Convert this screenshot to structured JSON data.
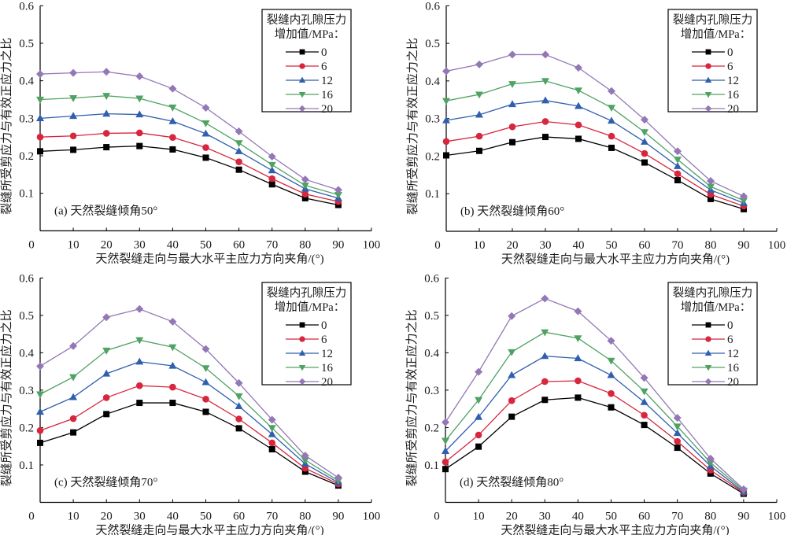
{
  "figure": {
    "legend_title_line1": "裂缝内孔隙压力",
    "legend_title_line2": "增加值/MPa："
  },
  "chart_data": [
    {
      "type": "line",
      "panel": "a",
      "title": "(a) 天然裂缝倾角50°",
      "xlabel": "天然裂缝走向与最大水平主应力方向夹角/(°)",
      "ylabel": "裂缝所受剪应力与有效正应力之比",
      "xlim": [
        0,
        100
      ],
      "ylim": [
        0,
        0.6
      ],
      "xticks": [
        "0",
        "10",
        "20",
        "30",
        "40",
        "50",
        "60",
        "70",
        "80",
        "90",
        "100"
      ],
      "yticks": [
        "0.1",
        "0.2",
        "0.3",
        "0.4",
        "0.5",
        "0.6"
      ],
      "grid": false,
      "legend_position": "top-right",
      "x": [
        0,
        10,
        20,
        30,
        40,
        50,
        60,
        70,
        80,
        90
      ],
      "series": [
        {
          "name": "0",
          "color": "#000000",
          "marker": "square",
          "values": [
            0.212,
            0.216,
            0.223,
            0.226,
            0.217,
            0.195,
            0.163,
            0.124,
            0.087,
            0.069
          ]
        },
        {
          "name": "6",
          "color": "#d7263d",
          "marker": "circle",
          "values": [
            0.25,
            0.253,
            0.26,
            0.261,
            0.249,
            0.222,
            0.184,
            0.139,
            0.098,
            0.078
          ]
        },
        {
          "name": "12",
          "color": "#2f5fae",
          "marker": "triangle-up",
          "values": [
            0.3,
            0.306,
            0.312,
            0.31,
            0.292,
            0.259,
            0.212,
            0.161,
            0.112,
            0.087
          ]
        },
        {
          "name": "16",
          "color": "#4fa262",
          "marker": "triangle-down",
          "values": [
            0.35,
            0.354,
            0.36,
            0.353,
            0.329,
            0.287,
            0.234,
            0.176,
            0.121,
            0.096
          ]
        },
        {
          "name": "20",
          "color": "#9478b6",
          "marker": "diamond",
          "values": [
            0.418,
            0.421,
            0.424,
            0.412,
            0.379,
            0.328,
            0.265,
            0.198,
            0.137,
            0.109
          ]
        }
      ]
    },
    {
      "type": "line",
      "panel": "b",
      "title": "(b) 天然裂缝倾角60°",
      "xlabel": "天然裂缝走向与最大水平主应力方向夹角/(°)",
      "ylabel": "裂缝所受剪应力与有效正应力之比",
      "xlim": [
        0,
        100
      ],
      "ylim": [
        0,
        0.6
      ],
      "xticks": [
        "0",
        "10",
        "20",
        "30",
        "40",
        "50",
        "60",
        "70",
        "80",
        "90",
        "100"
      ],
      "yticks": [
        "0.1",
        "0.2",
        "0.3",
        "0.4",
        "0.5",
        "0.6"
      ],
      "grid": false,
      "legend_position": "top-right",
      "x": [
        0,
        10,
        20,
        30,
        40,
        50,
        60,
        70,
        80,
        90
      ],
      "series": [
        {
          "name": "0",
          "color": "#000000",
          "marker": "square",
          "values": [
            0.202,
            0.214,
            0.237,
            0.251,
            0.246,
            0.222,
            0.183,
            0.136,
            0.086,
            0.059
          ]
        },
        {
          "name": "6",
          "color": "#d7263d",
          "marker": "circle",
          "values": [
            0.239,
            0.253,
            0.278,
            0.292,
            0.283,
            0.253,
            0.207,
            0.153,
            0.098,
            0.067
          ]
        },
        {
          "name": "12",
          "color": "#2f5fae",
          "marker": "triangle-up",
          "values": [
            0.295,
            0.31,
            0.338,
            0.348,
            0.333,
            0.294,
            0.238,
            0.173,
            0.11,
            0.075
          ]
        },
        {
          "name": "16",
          "color": "#4fa262",
          "marker": "triangle-down",
          "values": [
            0.347,
            0.364,
            0.392,
            0.4,
            0.375,
            0.329,
            0.264,
            0.191,
            0.119,
            0.082
          ]
        },
        {
          "name": "20",
          "color": "#9478b6",
          "marker": "diamond",
          "values": [
            0.426,
            0.444,
            0.47,
            0.47,
            0.435,
            0.373,
            0.297,
            0.213,
            0.134,
            0.093
          ]
        }
      ]
    },
    {
      "type": "line",
      "panel": "c",
      "title": "(c) 天然裂缝倾角70°",
      "xlabel": "天然裂缝走向与最大水平主应力方向夹角/(°)",
      "ylabel": "裂缝所受剪应力与有效正应力之比",
      "xlim": [
        0,
        100
      ],
      "ylim": [
        0,
        0.6
      ],
      "xticks": [
        "0",
        "10",
        "20",
        "30",
        "40",
        "50",
        "60",
        "70",
        "80",
        "90",
        "100"
      ],
      "yticks": [
        "0.1",
        "0.2",
        "0.3",
        "0.4",
        "0.5",
        "0.6"
      ],
      "grid": false,
      "legend_position": "top-right",
      "x": [
        0,
        10,
        20,
        30,
        40,
        50,
        60,
        70,
        80,
        90
      ],
      "series": [
        {
          "name": "0",
          "color": "#000000",
          "marker": "square",
          "values": [
            0.159,
            0.187,
            0.236,
            0.266,
            0.266,
            0.242,
            0.198,
            0.142,
            0.082,
            0.045
          ]
        },
        {
          "name": "6",
          "color": "#d7263d",
          "marker": "circle",
          "values": [
            0.192,
            0.224,
            0.28,
            0.312,
            0.308,
            0.276,
            0.223,
            0.159,
            0.091,
            0.049
          ]
        },
        {
          "name": "12",
          "color": "#2f5fae",
          "marker": "triangle-up",
          "values": [
            0.242,
            0.281,
            0.344,
            0.376,
            0.365,
            0.321,
            0.257,
            0.182,
            0.103,
            0.053
          ]
        },
        {
          "name": "16",
          "color": "#4fa262",
          "marker": "triangle-down",
          "values": [
            0.289,
            0.335,
            0.406,
            0.434,
            0.415,
            0.359,
            0.284,
            0.199,
            0.113,
            0.058
          ]
        },
        {
          "name": "20",
          "color": "#9478b6",
          "marker": "diamond",
          "values": [
            0.364,
            0.418,
            0.495,
            0.517,
            0.483,
            0.41,
            0.319,
            0.221,
            0.125,
            0.066
          ]
        }
      ]
    },
    {
      "type": "line",
      "panel": "d",
      "title": "(d) 天然裂缝倾角80°",
      "xlabel": "天然裂缝走向与最大水平主应力方向夹角/(°)",
      "ylabel": "裂缝所受剪应力与有效正应力之比",
      "xlim": [
        0,
        100
      ],
      "ylim": [
        0,
        0.6
      ],
      "xticks": [
        "0",
        "10",
        "20",
        "30",
        "40",
        "50",
        "60",
        "70",
        "80",
        "90",
        "100"
      ],
      "yticks": [
        "0.1",
        "0.2",
        "0.3",
        "0.4",
        "0.5",
        "0.6"
      ],
      "grid": false,
      "legend_position": "top-right",
      "x": [
        0,
        10,
        20,
        30,
        40,
        50,
        60,
        70,
        80,
        90
      ],
      "series": [
        {
          "name": "0",
          "color": "#000000",
          "marker": "square",
          "values": [
            0.089,
            0.149,
            0.229,
            0.274,
            0.28,
            0.254,
            0.207,
            0.146,
            0.077,
            0.023
          ]
        },
        {
          "name": "6",
          "color": "#d7263d",
          "marker": "circle",
          "values": [
            0.108,
            0.18,
            0.272,
            0.323,
            0.325,
            0.291,
            0.233,
            0.163,
            0.086,
            0.026
          ]
        },
        {
          "name": "12",
          "color": "#2f5fae",
          "marker": "triangle-up",
          "values": [
            0.137,
            0.228,
            0.34,
            0.391,
            0.385,
            0.34,
            0.268,
            0.185,
            0.097,
            0.028
          ]
        },
        {
          "name": "16",
          "color": "#4fa262",
          "marker": "triangle-down",
          "values": [
            0.165,
            0.274,
            0.402,
            0.455,
            0.439,
            0.379,
            0.297,
            0.203,
            0.106,
            0.032
          ]
        },
        {
          "name": "20",
          "color": "#9478b6",
          "marker": "diamond",
          "values": [
            0.214,
            0.349,
            0.498,
            0.545,
            0.511,
            0.432,
            0.333,
            0.226,
            0.117,
            0.035
          ]
        }
      ]
    }
  ]
}
